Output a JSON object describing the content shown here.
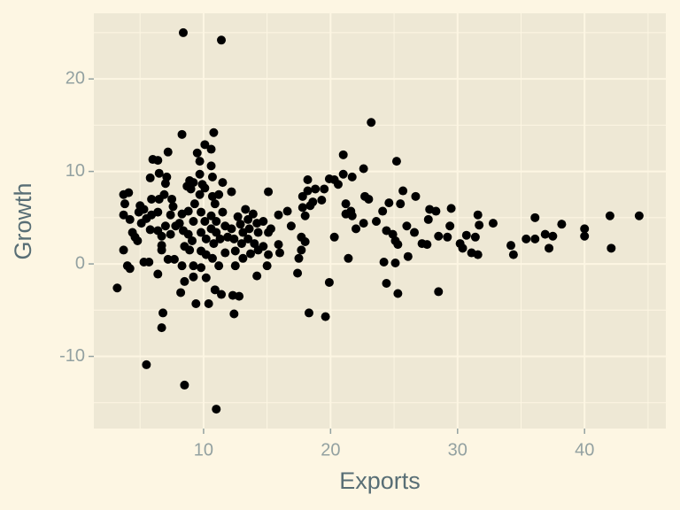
{
  "chart_data": {
    "type": "scatter",
    "x_label": "Exports",
    "y_label": "Growth",
    "color": "#000000",
    "xlim": [
      1.36,
      46.4
    ],
    "ylim": [
      -17.8,
      27.1
    ],
    "xticks": [
      10,
      20,
      30,
      40
    ],
    "yticks": [
      -10,
      0,
      10,
      20
    ],
    "x_minor_breaks": [
      5,
      15,
      25,
      35,
      45
    ],
    "y_minor_breaks": [
      -15,
      -5,
      5,
      15,
      25
    ],
    "grid": true,
    "x": [
      8.4,
      11.4,
      3.2,
      5.5,
      8.5,
      11.0,
      23.2,
      10.8,
      8.3,
      10.1,
      10.6,
      9.5,
      7.2,
      6.0,
      6.4,
      9.7,
      10.6,
      25.2,
      21.0,
      22.6,
      21.0,
      19.9,
      20.3,
      18.2,
      21.7,
      19.5,
      20.6,
      18.2,
      18.8,
      17.8,
      18.6,
      19.3,
      18.0,
      17.8,
      18.4,
      15.1,
      16.6,
      15.9,
      21.2,
      21.6,
      21.2,
      21.7,
      22.7,
      23.0,
      22.6,
      22.0,
      20.3,
      21.4,
      19.9,
      18.3,
      19.6,
      25.7,
      25.5,
      24.6,
      24.1,
      23.6,
      24.4,
      24.9,
      26.0,
      26.6,
      26.7,
      27.8,
      28.3,
      27.7,
      29.5,
      27.2,
      27.6,
      28.5,
      29.2,
      29.4,
      30.2,
      30.4,
      30.7,
      31.4,
      31.1,
      31.6,
      31.6,
      31.7,
      32.8,
      34.2,
      34.4,
      35.4,
      36.1,
      36.1,
      36.9,
      37.2,
      37.5,
      38.2,
      40.0,
      40.0,
      42.0,
      42.1,
      44.3,
      26.1,
      25.1,
      25.3,
      24.2,
      24.4,
      25.3,
      25.1,
      28.5,
      17.7,
      18.0,
      17.4,
      17.5,
      17.7,
      3.7,
      4.1,
      3.8,
      3.7,
      4.2,
      3.7,
      4.0,
      4.2,
      4.4,
      4.6,
      5.0,
      4.9,
      5.3,
      5.1,
      5.5,
      4.8,
      5.3,
      5.7,
      5.8,
      6.5,
      5.9,
      6.5,
      5.9,
      6.4,
      6.9,
      5.8,
      6.4,
      7.0,
      6.7,
      6.7,
      6.7,
      6.4,
      6.8,
      6.7,
      7.2,
      7.7,
      7.1,
      7.0,
      7.5,
      7.6,
      7.4,
      7.8,
      7.4,
      8.1,
      8.3,
      8.4,
      8.5,
      8.3,
      8.2,
      8.5,
      8.7,
      8.9,
      9.2,
      9.0,
      9.3,
      8.8,
      9.2,
      8.8,
      9.1,
      8.9,
      9.2,
      9.2,
      9.4,
      9.7,
      9.9,
      9.7,
      10.1,
      9.8,
      10.1,
      9.8,
      10.2,
      9.8,
      10.2,
      9.8,
      10.2,
      10.4,
      10.7,
      10.7,
      10.9,
      11.2,
      10.6,
      11.0,
      10.6,
      11.0,
      10.8,
      11.3,
      10.7,
      11.2,
      10.9,
      11.4,
      11.5,
      11.5,
      11.7,
      11.9,
      11.7,
      12.2,
      12.2,
      12.4,
      12.5,
      12.5,
      12.3,
      12.8,
      12.4,
      12.7,
      12.9,
      13.1,
      13.0,
      13.3,
      13.5,
      13.6,
      13.5,
      13.7,
      13.1,
      13.9,
      14.2,
      14.3,
      14.0,
      14.3,
      14.2,
      14.7,
      15.1,
      14.7,
      15.1,
      15.0,
      15.9,
      16.0,
      16.9,
      15.3
    ],
    "values": [
      25.0,
      24.2,
      -2.6,
      -10.9,
      -13.1,
      -15.7,
      15.3,
      14.2,
      14.0,
      12.9,
      12.4,
      12.0,
      12.1,
      11.3,
      11.2,
      11.1,
      10.6,
      11.1,
      11.8,
      10.3,
      9.7,
      9.2,
      9.1,
      9.1,
      9.4,
      8.1,
      8.6,
      7.9,
      8.1,
      7.3,
      6.7,
      6.9,
      5.2,
      6.1,
      6.3,
      7.8,
      5.7,
      5.3,
      6.5,
      5.7,
      5.4,
      5.2,
      7.3,
      7.0,
      4.4,
      3.8,
      2.9,
      0.6,
      -2.0,
      -5.3,
      -5.7,
      7.9,
      6.5,
      6.6,
      5.7,
      4.6,
      3.6,
      3.2,
      4.1,
      3.4,
      7.3,
      5.9,
      5.7,
      4.8,
      6.0,
      2.2,
      2.1,
      3.0,
      2.9,
      4.1,
      2.2,
      1.7,
      3.1,
      2.9,
      1.2,
      1.0,
      5.3,
      4.2,
      4.4,
      2.0,
      1.0,
      2.7,
      5.0,
      2.7,
      3.2,
      1.7,
      3.0,
      4.3,
      3.8,
      3.0,
      5.2,
      1.7,
      5.2,
      0.8,
      2.5,
      2.1,
      0.2,
      -2.1,
      -3.2,
      0.1,
      -3.0,
      1.5,
      2.4,
      -1.0,
      0.6,
      2.9,
      7.5,
      7.7,
      6.5,
      5.3,
      4.8,
      1.5,
      -0.2,
      -0.5,
      3.4,
      2.9,
      6.3,
      5.6,
      5.9,
      4.4,
      4.9,
      2.5,
      0.2,
      0.2,
      9.3,
      9.8,
      7.0,
      7.0,
      5.3,
      5.6,
      7.5,
      3.7,
      3.6,
      4.1,
      3.0,
      2.0,
      1.5,
      -1.1,
      -5.3,
      -6.9,
      0.5,
      0.5,
      9.4,
      8.7,
      7.0,
      6.2,
      5.3,
      4.1,
      3.2,
      4.4,
      5.4,
      3.6,
      1.9,
      -0.2,
      -3.1,
      -1.9,
      8.4,
      9.0,
      8.8,
      8.1,
      6.5,
      5.7,
      4.6,
      3.2,
      2.5,
      1.5,
      -0.2,
      -1.4,
      -4.3,
      9.7,
      8.6,
      7.5,
      8.2,
      5.6,
      4.6,
      3.4,
      2.7,
      1.4,
      1.0,
      -0.4,
      -1.5,
      -4.3,
      9.4,
      7.3,
      6.5,
      7.5,
      5.2,
      4.6,
      3.8,
      3.4,
      2.2,
      2.7,
      0.6,
      -0.2,
      -2.8,
      -3.3,
      8.8,
      5.6,
      4.1,
      2.9,
      1.2,
      7.8,
      3.8,
      2.7,
      1.4,
      -0.2,
      -3.4,
      -3.5,
      -5.4,
      5.1,
      4.3,
      3.4,
      2.2,
      5.9,
      4.8,
      3.8,
      2.7,
      1.1,
      0.6,
      5.4,
      4.4,
      3.4,
      2.2,
      1.5,
      -1.3,
      4.6,
      3.4,
      1.9,
      1.0,
      -0.2,
      2.1,
      1.2,
      4.1,
      3.8
    ]
  }
}
